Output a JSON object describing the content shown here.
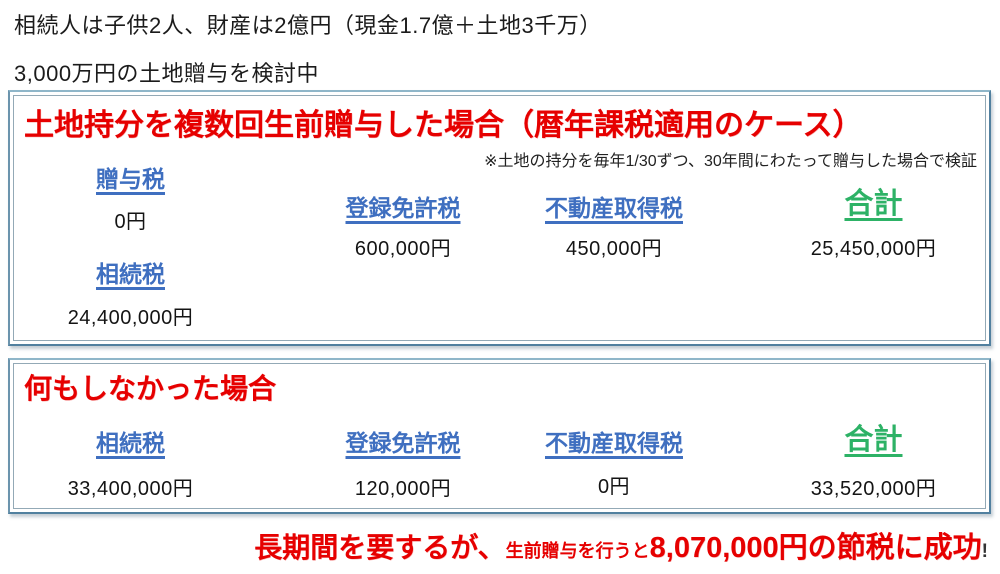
{
  "colors": {
    "heading_red": "#e60000",
    "tax_label_blue": "#3f6fc0",
    "total_green": "#2db266",
    "frame_blue": "#51809f",
    "body_text": "#1a1a1a"
  },
  "intro": {
    "line1": "相続人は子供2人、財産は2億円（現金1.7億＋土地3千万）",
    "line2": "3,000万円の土地贈与を検討中"
  },
  "gift_case": {
    "title": "土地持分を複数回生前贈与した場合（暦年課税適用のケース）",
    "note": "※土地の持分を毎年1/30ずつ、30年間にわたって贈与した場合で検証",
    "gift_tax": {
      "label": "贈与税",
      "value": "0円"
    },
    "registration_tax": {
      "label": "登録免許税",
      "value": "600,000円"
    },
    "acquisition_tax": {
      "label": "不動産取得税",
      "value": "450,000円"
    },
    "inheritance_tax": {
      "label": "相続税",
      "value": "24,400,000円"
    },
    "total": {
      "label": "合計",
      "value": "25,450,000円"
    }
  },
  "no_action_case": {
    "title": "何もしなかった場合",
    "inheritance_tax": {
      "label": "相続税",
      "value": "33,400,000円"
    },
    "registration_tax": {
      "label": "登録免許税",
      "value": "120,000円"
    },
    "acquisition_tax": {
      "label": "不動産取得税",
      "value": "0円"
    },
    "total": {
      "label": "合計",
      "value": "33,520,000円"
    }
  },
  "conclusion": {
    "lead": "長期間を要するが、",
    "middle": "生前贈与を行うと",
    "highlight": "8,070,000円の節税に成功",
    "tail": "!"
  }
}
